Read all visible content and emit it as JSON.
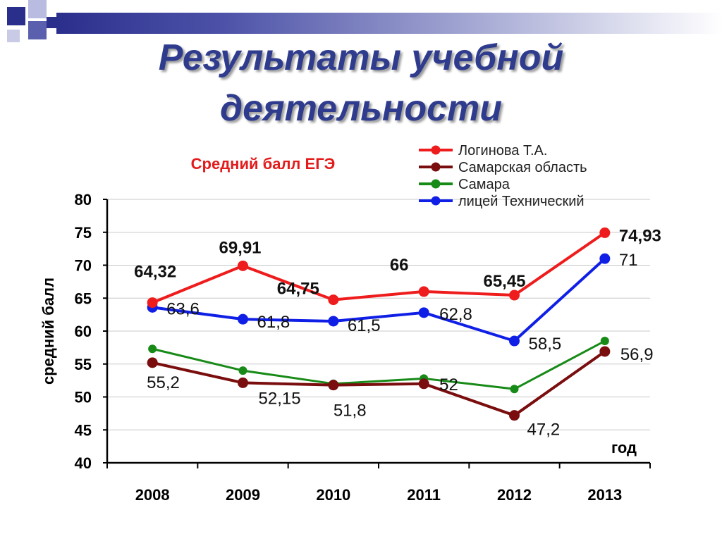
{
  "slide_title": {
    "line1": "Результаты учебной",
    "line2": "деятельности"
  },
  "colors": {
    "accent": "#2f3c8e",
    "chart_title": "#e21b1b"
  },
  "chart_data": {
    "type": "line",
    "title": "Средний балл ЕГЭ",
    "xlabel": "год",
    "ylabel": "средний балл",
    "categories": [
      "2008",
      "2009",
      "2010",
      "2011",
      "2012",
      "2013"
    ],
    "ylim": [
      40,
      80
    ],
    "yticks": [
      "40",
      "45",
      "50",
      "55",
      "60",
      "65",
      "70",
      "75",
      "80"
    ],
    "grid": true,
    "legend_position": "top-right",
    "series": [
      {
        "name": "Логинова Т.А.",
        "color": "#ee1c1c",
        "values": [
          64.32,
          69.91,
          64.75,
          66,
          65.45,
          74.93
        ],
        "labels": [
          "64,32",
          "69,91",
          "64,75",
          "66",
          "65,45",
          "74,93"
        ]
      },
      {
        "name": "Самарская область",
        "color": "#7a0d0d",
        "values": [
          55.2,
          52.15,
          51.8,
          52,
          47.2,
          56.9
        ],
        "labels": [
          "55,2",
          "52,15",
          "51,8",
          "52",
          "47,2",
          "56,9"
        ]
      },
      {
        "name": "Самара",
        "color": "#178a17",
        "values": [
          57.3,
          54.0,
          52.0,
          52.8,
          51.2,
          58.5
        ],
        "labels": [
          "",
          "",
          "",
          "",
          "",
          ""
        ]
      },
      {
        "name": "лицей Технический",
        "color": "#0f1fe6",
        "values": [
          63.6,
          61.8,
          61.5,
          62.8,
          58.5,
          71
        ],
        "labels": [
          "63,6",
          "61,8",
          "61,5",
          "62,8",
          "58,5",
          "71"
        ]
      }
    ]
  }
}
